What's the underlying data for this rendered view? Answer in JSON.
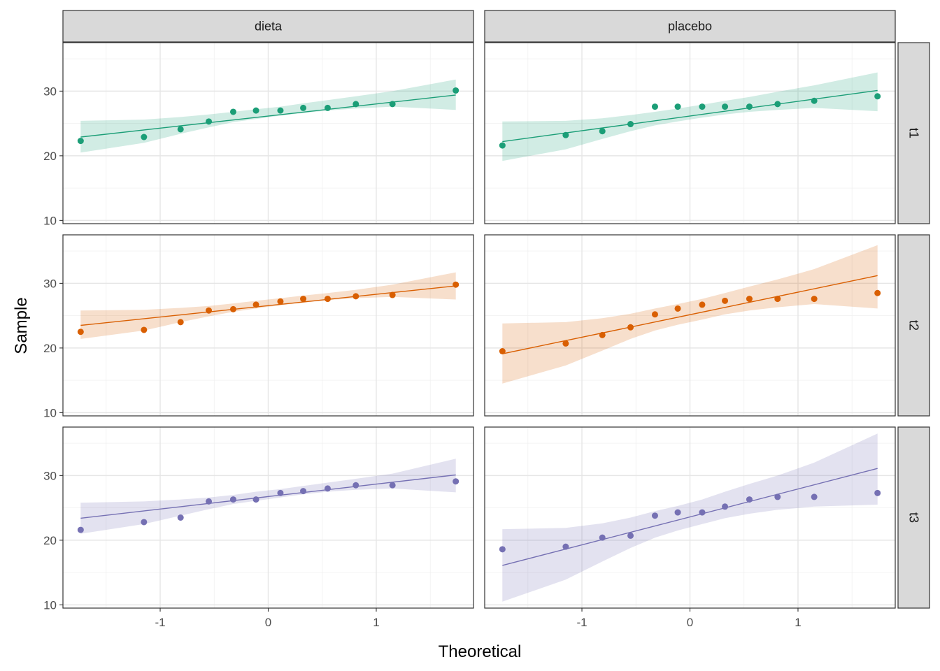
{
  "chart_data": {
    "type": "scatter",
    "subtype": "qq-plot facet grid with reference line and confidence band",
    "xlabel": "Theoretical",
    "ylabel": "Sample",
    "xlim": [
      -1.9,
      1.9
    ],
    "ylim": [
      9.5,
      37.5
    ],
    "x_ticks": [
      -1,
      0,
      1
    ],
    "x_tick_labels": [
      "-1",
      "0",
      "1"
    ],
    "y_ticks": [
      10,
      20,
      30
    ],
    "y_tick_labels": [
      "10",
      "20",
      "30"
    ],
    "grid": true,
    "legend": "none",
    "facet_columns": [
      "dieta",
      "placebo"
    ],
    "facet_rows": [
      "t1",
      "t2",
      "t3"
    ],
    "theoretical": [
      -1.736,
      -1.15,
      -0.811,
      -0.55,
      -0.324,
      -0.113,
      0.113,
      0.324,
      0.55,
      0.811,
      1.15,
      1.736
    ],
    "row_colors": {
      "t1": "#1b9e77",
      "t2": "#d95f02",
      "t3": "#7570b3"
    },
    "panels": [
      {
        "column": "dieta",
        "row": "t1",
        "sample": [
          22.3,
          22.9,
          24.1,
          25.3,
          26.8,
          27.0,
          27.0,
          27.4,
          27.4,
          28.0,
          28.0,
          30.1
        ],
        "line": [
          22.9,
          29.4
        ],
        "band_lower": [
          20.5,
          22.0,
          23.4,
          24.4,
          25.2,
          25.7,
          26.2,
          26.6,
          27.0,
          27.3,
          27.6,
          27.1
        ],
        "band_upper": [
          25.4,
          25.6,
          26.0,
          26.4,
          26.8,
          27.2,
          27.6,
          28.1,
          28.6,
          29.2,
          30.0,
          31.8
        ]
      },
      {
        "column": "placebo",
        "row": "t1",
        "sample": [
          21.6,
          23.2,
          23.8,
          24.9,
          27.6,
          27.6,
          27.6,
          27.6,
          27.6,
          28.0,
          28.5,
          29.2
        ],
        "line": [
          22.2,
          30.1
        ],
        "band_lower": [
          19.2,
          21.0,
          22.6,
          23.8,
          24.7,
          25.3,
          25.9,
          26.4,
          26.8,
          27.1,
          27.4,
          26.9
        ],
        "band_upper": [
          25.3,
          25.4,
          25.8,
          26.3,
          26.8,
          27.3,
          27.9,
          28.5,
          29.1,
          29.9,
          30.9,
          32.9
        ]
      },
      {
        "column": "dieta",
        "row": "t2",
        "sample": [
          22.5,
          22.8,
          24.0,
          25.8,
          26.0,
          26.7,
          27.2,
          27.6,
          27.6,
          28.0,
          28.2,
          29.8
        ],
        "line": [
          23.5,
          29.6
        ],
        "band_lower": [
          21.4,
          22.7,
          24.0,
          24.9,
          25.6,
          26.1,
          26.6,
          27.0,
          27.4,
          27.7,
          27.9,
          27.5
        ],
        "band_upper": [
          25.8,
          25.9,
          26.2,
          26.5,
          26.9,
          27.3,
          27.7,
          28.1,
          28.5,
          29.0,
          29.8,
          31.7
        ]
      },
      {
        "column": "placebo",
        "row": "t2",
        "sample": [
          19.5,
          20.7,
          22.0,
          23.2,
          25.2,
          26.1,
          26.7,
          27.3,
          27.6,
          27.6,
          27.6,
          28.5
        ],
        "line": [
          19.1,
          31.2
        ],
        "band_lower": [
          14.5,
          17.3,
          19.6,
          21.4,
          22.7,
          23.6,
          24.4,
          25.2,
          25.8,
          26.3,
          26.8,
          26.1
        ],
        "band_upper": [
          23.8,
          24.0,
          24.6,
          25.3,
          26.1,
          26.8,
          27.6,
          28.5,
          29.5,
          30.6,
          32.2,
          35.9
        ]
      },
      {
        "column": "dieta",
        "row": "t3",
        "sample": [
          21.6,
          22.8,
          23.5,
          26.0,
          26.3,
          26.3,
          27.3,
          27.6,
          28.0,
          28.5,
          28.5,
          29.1
        ],
        "line": [
          23.4,
          30.1
        ],
        "band_lower": [
          21.0,
          22.5,
          23.8,
          24.8,
          25.6,
          26.1,
          26.6,
          27.1,
          27.5,
          27.8,
          28.0,
          27.4
        ],
        "band_upper": [
          25.8,
          26.0,
          26.3,
          26.6,
          27.0,
          27.5,
          27.9,
          28.4,
          28.9,
          29.5,
          30.3,
          32.6
        ]
      },
      {
        "column": "placebo",
        "row": "t3",
        "sample": [
          18.6,
          19.0,
          20.4,
          20.7,
          23.8,
          24.3,
          24.3,
          25.2,
          26.3,
          26.7,
          26.7,
          27.3
        ],
        "line": [
          16.1,
          31.1
        ],
        "band_lower": [
          10.5,
          13.9,
          16.7,
          18.8,
          20.4,
          21.5,
          22.5,
          23.4,
          24.1,
          24.7,
          25.2,
          25.5
        ],
        "band_upper": [
          21.7,
          21.9,
          22.6,
          23.5,
          24.5,
          25.3,
          26.3,
          27.5,
          28.7,
          30.0,
          32.0,
          36.5
        ]
      }
    ]
  }
}
